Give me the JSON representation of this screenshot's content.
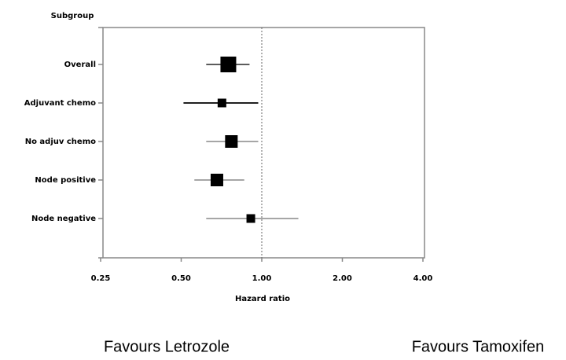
{
  "chart_data": {
    "type": "forest",
    "ylabel": "Subgroup",
    "xlabel": "Hazard ratio",
    "categories": [
      "Overall",
      "Adjuvant chemo",
      "No adjuv chemo",
      "Node positive",
      "Node negative"
    ],
    "values": [
      0.75,
      0.71,
      0.77,
      0.68,
      0.91
    ],
    "lower": [
      0.62,
      0.51,
      0.62,
      0.56,
      0.62
    ],
    "upper": [
      0.9,
      0.97,
      0.97,
      0.86,
      1.37
    ],
    "weights": [
      20,
      11,
      16,
      16,
      11
    ],
    "ci_colors": [
      "#444444",
      "#000000",
      "#999999",
      "#999999",
      "#999999"
    ],
    "color": "#000000",
    "log_x": true,
    "xlim": [
      0.25,
      4
    ],
    "xticks": [
      {
        "value": 0.25,
        "label": "0.25"
      },
      {
        "value": 0.5,
        "label": "0.50"
      },
      {
        "value": 1,
        "label": "1.00"
      },
      {
        "value": 2,
        "label": "2.00"
      },
      {
        "value": 4,
        "label": "4.00"
      }
    ],
    "reference_line": 1,
    "annotations": [
      "Favours Letrozole",
      "Favours Tamoxifen"
    ]
  }
}
